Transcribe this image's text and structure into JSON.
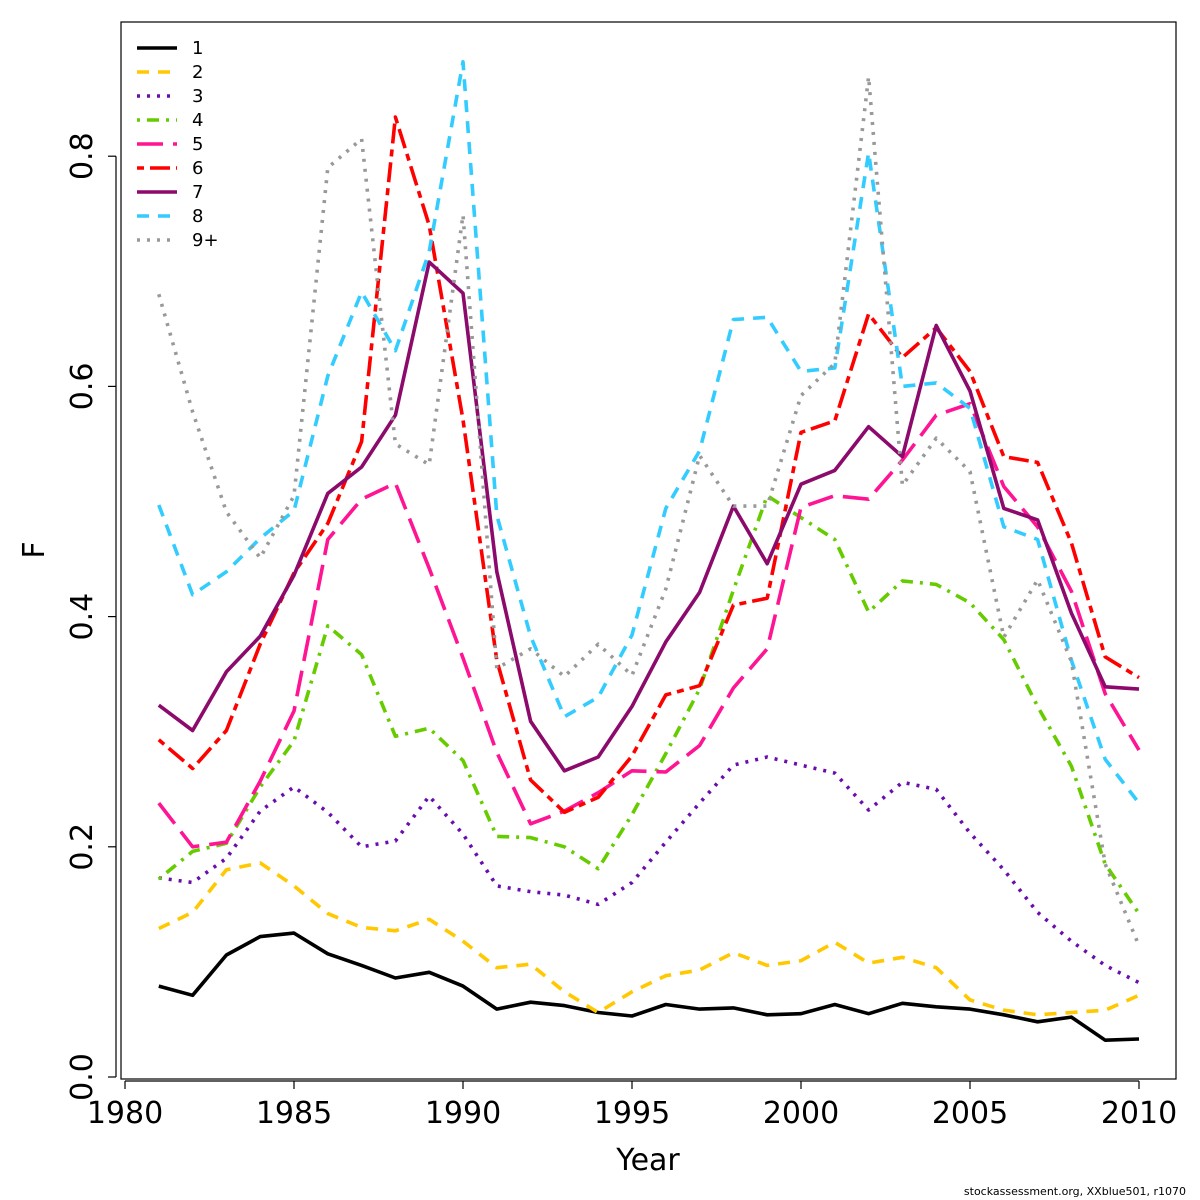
{
  "chart_data": {
    "type": "line",
    "xlabel": "Year",
    "ylabel": "F",
    "xlim": [
      1980,
      2010
    ],
    "ylim": [
      0,
      0.9
    ],
    "xticks": [
      "1980",
      "1985",
      "1990",
      "1995",
      "2000",
      "2005",
      "2010"
    ],
    "yticks": [
      "0.0",
      "0.2",
      "0.4",
      "0.6",
      "0.8"
    ],
    "legend_position": "top-left",
    "grid": false,
    "x": [
      1981,
      1982,
      1983,
      1984,
      1985,
      1986,
      1987,
      1988,
      1989,
      1990,
      1991,
      1992,
      1993,
      1994,
      1995,
      1996,
      1997,
      1998,
      1999,
      2000,
      2001,
      2002,
      2003,
      2004,
      2005,
      2006,
      2007,
      2008,
      2009,
      2010
    ],
    "series": [
      {
        "name": "1",
        "color": "#000000",
        "dash": "solid",
        "values": [
          0.079,
          0.071,
          0.106,
          0.122,
          0.125,
          0.107,
          0.097,
          0.086,
          0.091,
          0.079,
          0.059,
          0.065,
          0.062,
          0.056,
          0.053,
          0.063,
          0.059,
          0.06,
          0.054,
          0.055,
          0.063,
          0.055,
          0.064,
          0.061,
          0.059,
          0.054,
          0.048,
          0.052,
          0.032,
          0.033
        ]
      },
      {
        "name": "2",
        "color": "#FFC800",
        "dash": "dash",
        "values": [
          0.129,
          0.143,
          0.18,
          0.186,
          0.166,
          0.142,
          0.13,
          0.127,
          0.137,
          0.118,
          0.095,
          0.098,
          0.074,
          0.056,
          0.074,
          0.088,
          0.093,
          0.108,
          0.097,
          0.101,
          0.117,
          0.099,
          0.104,
          0.095,
          0.067,
          0.058,
          0.054,
          0.056,
          0.058,
          0.071
        ]
      },
      {
        "name": "3",
        "color": "#6A0DAD",
        "dash": "dot",
        "values": [
          0.173,
          0.169,
          0.19,
          0.231,
          0.252,
          0.23,
          0.2,
          0.205,
          0.244,
          0.211,
          0.166,
          0.161,
          0.158,
          0.15,
          0.169,
          0.204,
          0.238,
          0.271,
          0.278,
          0.271,
          0.264,
          0.232,
          0.256,
          0.25,
          0.212,
          0.18,
          0.143,
          0.118,
          0.097,
          0.082
        ]
      },
      {
        "name": "4",
        "color": "#66CC00",
        "dash": "dotdash",
        "values": [
          0.172,
          0.196,
          0.203,
          0.252,
          0.292,
          0.392,
          0.367,
          0.296,
          0.303,
          0.275,
          0.209,
          0.208,
          0.2,
          0.181,
          0.228,
          0.281,
          0.337,
          0.423,
          0.505,
          0.486,
          0.467,
          0.404,
          0.431,
          0.428,
          0.412,
          0.38,
          0.322,
          0.27,
          0.185,
          0.142
        ]
      },
      {
        "name": "5",
        "color": "#FF1493",
        "dash": "longdash",
        "values": [
          0.238,
          0.2,
          0.204,
          0.257,
          0.318,
          0.467,
          0.502,
          0.516,
          0.442,
          0.364,
          0.282,
          0.22,
          0.231,
          0.247,
          0.266,
          0.265,
          0.288,
          0.338,
          0.372,
          0.495,
          0.505,
          0.502,
          0.536,
          0.575,
          0.585,
          0.513,
          0.478,
          0.422,
          0.333,
          0.284
        ]
      },
      {
        "name": "6",
        "color": "#FF0000",
        "dash": "twodash",
        "values": [
          0.293,
          0.268,
          0.301,
          0.376,
          0.438,
          0.481,
          0.552,
          0.834,
          0.74,
          0.571,
          0.362,
          0.258,
          0.23,
          0.243,
          0.279,
          0.332,
          0.34,
          0.41,
          0.416,
          0.56,
          0.57,
          0.663,
          0.625,
          0.651,
          0.613,
          0.539,
          0.534,
          0.464,
          0.365,
          0.347
        ]
      },
      {
        "name": "7",
        "color": "#8B0A6B",
        "dash": "solid",
        "values": [
          0.323,
          0.301,
          0.352,
          0.383,
          0.436,
          0.507,
          0.53,
          0.575,
          0.708,
          0.681,
          0.439,
          0.309,
          0.266,
          0.278,
          0.322,
          0.378,
          0.421,
          0.496,
          0.446,
          0.515,
          0.527,
          0.565,
          0.539,
          0.653,
          0.596,
          0.494,
          0.484,
          0.403,
          0.339,
          0.337
        ]
      },
      {
        "name": "8",
        "color": "#33CCFF",
        "dash": "dash",
        "values": [
          0.497,
          0.419,
          0.439,
          0.468,
          0.492,
          0.609,
          0.682,
          0.631,
          0.717,
          0.882,
          0.488,
          0.383,
          0.313,
          0.33,
          0.384,
          0.494,
          0.544,
          0.658,
          0.66,
          0.613,
          0.616,
          0.803,
          0.6,
          0.603,
          0.581,
          0.478,
          0.467,
          0.362,
          0.276,
          0.238
        ]
      },
      {
        "name": "9+",
        "color": "#999999",
        "dash": "dot",
        "values": [
          0.68,
          0.578,
          0.491,
          0.451,
          0.505,
          0.79,
          0.815,
          0.55,
          0.532,
          0.749,
          0.355,
          0.372,
          0.348,
          0.376,
          0.349,
          0.424,
          0.54,
          0.496,
          0.496,
          0.592,
          0.62,
          0.869,
          0.514,
          0.555,
          0.526,
          0.382,
          0.432,
          0.361,
          0.185,
          0.114
        ]
      }
    ],
    "credit": "stockassessment.org, XXblue501, r1070"
  }
}
